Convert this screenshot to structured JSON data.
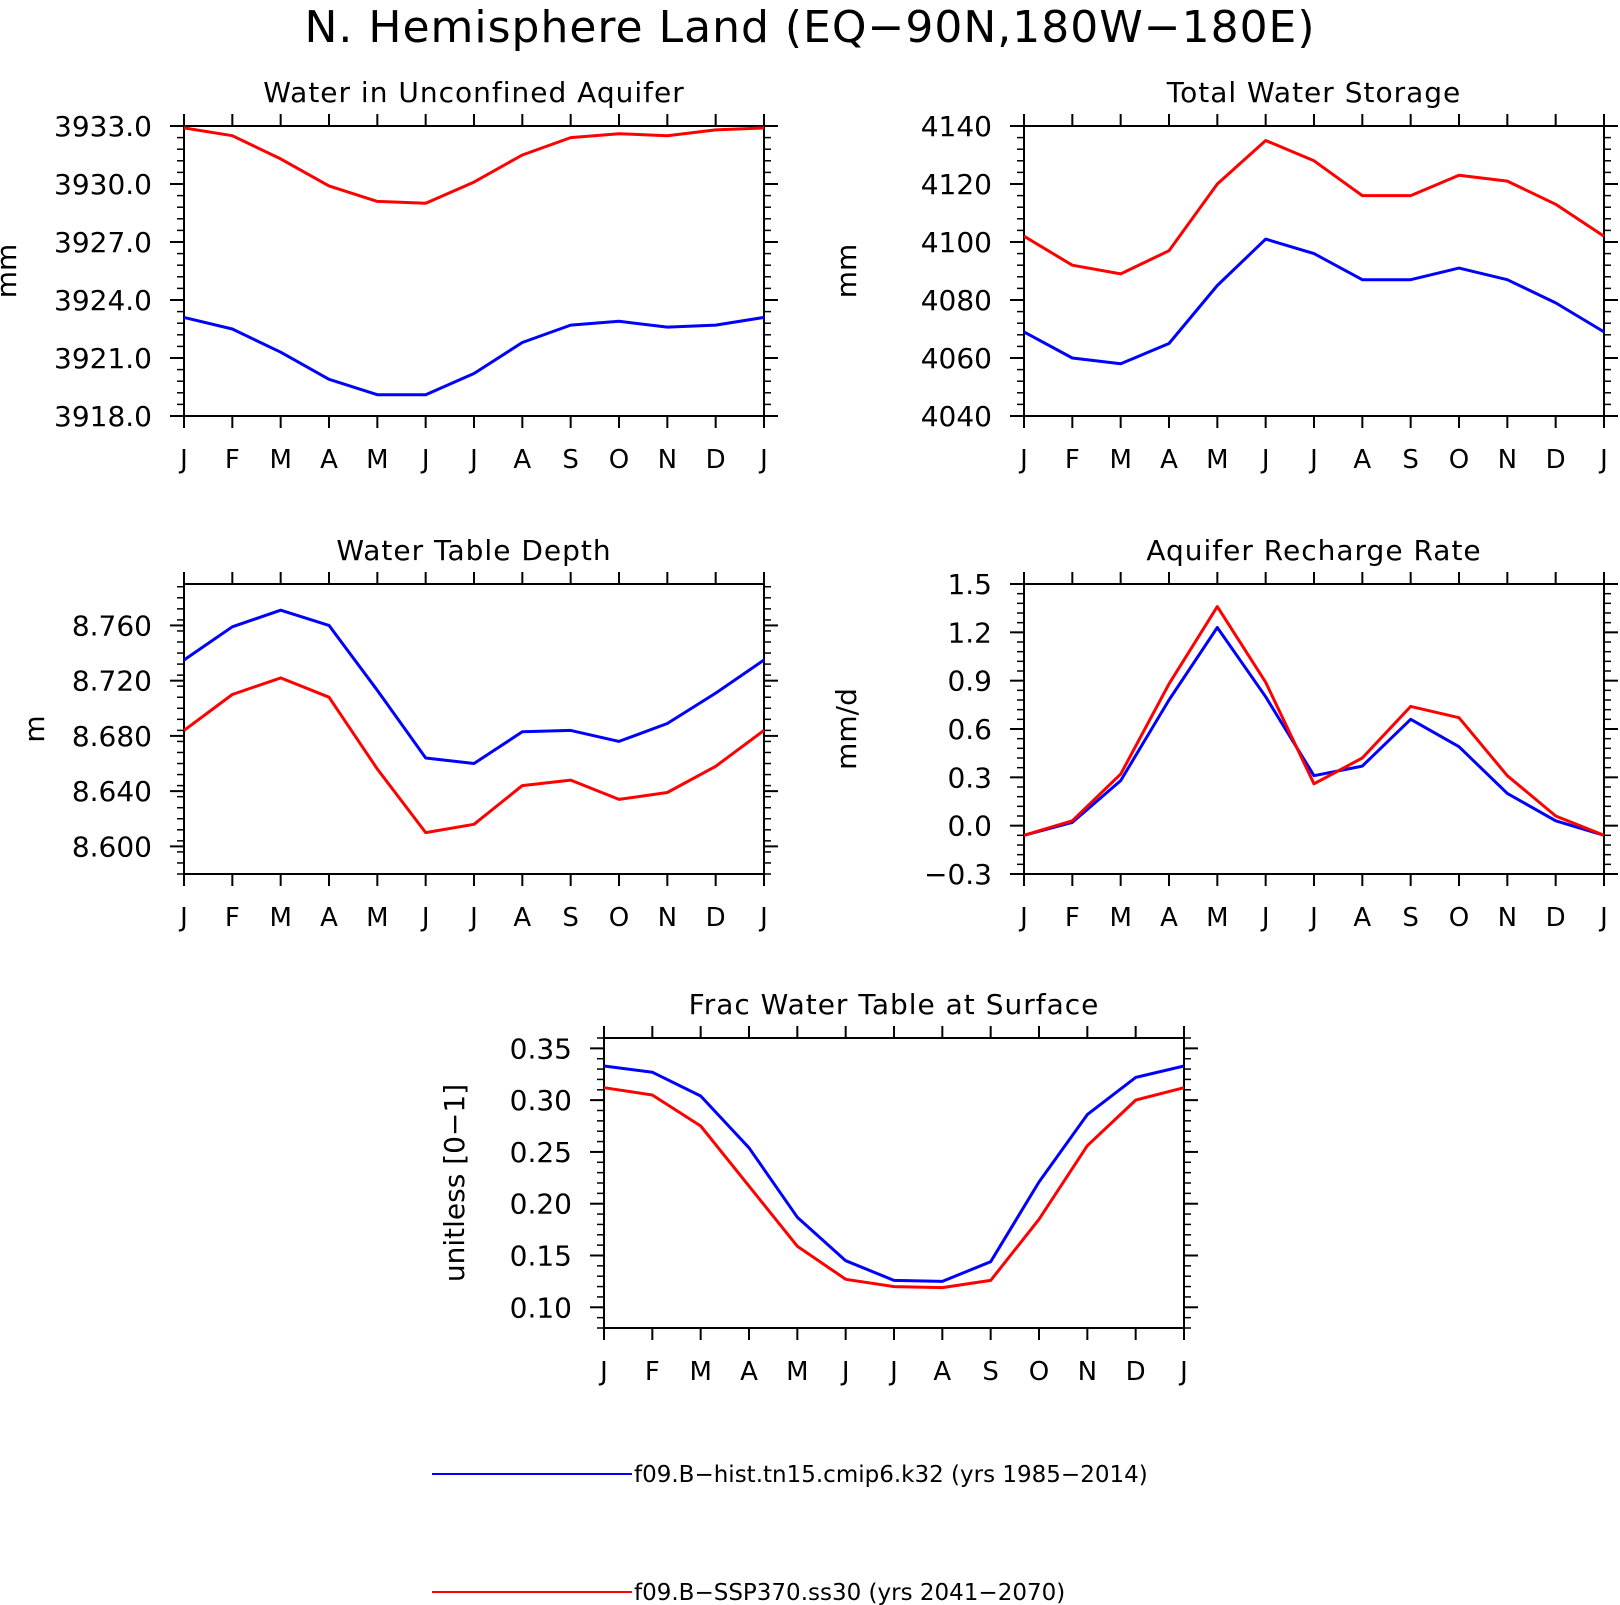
{
  "title": "N. Hemisphere Land (EQ−90N,180W−180E)",
  "months": [
    "J",
    "F",
    "M",
    "A",
    "M",
    "J",
    "J",
    "A",
    "S",
    "O",
    "N",
    "D",
    "J"
  ],
  "legend": [
    {
      "label": "f09.B−hist.tn15.cmip6.k32 (yrs 1985−2014)",
      "color": "#0000ff"
    },
    {
      "label": "f09.B−SSP370.ss30 (yrs 2041−2070)",
      "color": "#ff0000"
    }
  ],
  "chart_data": [
    {
      "type": "line",
      "title": "Water in Unconfined Aquifer",
      "ylabel": "mm",
      "ylim": [
        3918.0,
        3933.0
      ],
      "yticks": [
        3918.0,
        3921.0,
        3924.0,
        3927.0,
        3930.0,
        3933.0
      ],
      "yticklabels": [
        "3918.0",
        "3921.0",
        "3924.0",
        "3927.0",
        "3930.0",
        "3933.0"
      ],
      "series": [
        {
          "name": "f09.B−hist.tn15.cmip6.k32 (yrs 1985−2014)",
          "color": "#0000ff",
          "values": [
            3923.1,
            3922.5,
            3921.3,
            3919.9,
            3919.1,
            3919.1,
            3920.2,
            3921.8,
            3922.7,
            3922.9,
            3922.6,
            3922.7,
            3923.1
          ]
        },
        {
          "name": "f09.B−SSP370.ss30 (yrs 2041−2070)",
          "color": "#ff0000",
          "values": [
            3932.9,
            3932.5,
            3931.3,
            3929.9,
            3929.1,
            3929.0,
            3930.1,
            3931.5,
            3932.4,
            3932.6,
            3932.5,
            3932.8,
            3932.9
          ]
        }
      ]
    },
    {
      "type": "line",
      "title": "Total Water Storage",
      "ylabel": "mm",
      "ylim": [
        4040,
        4140
      ],
      "yticks": [
        4040,
        4060,
        4080,
        4100,
        4120,
        4140
      ],
      "yticklabels": [
        "4040",
        "4060",
        "4080",
        "4100",
        "4120",
        "4140"
      ],
      "series": [
        {
          "name": "f09.B−hist.tn15.cmip6.k32 (yrs 1985−2014)",
          "color": "#0000ff",
          "values": [
            4069,
            4060,
            4058,
            4065,
            4085,
            4101,
            4096,
            4087,
            4087,
            4091,
            4087,
            4079,
            4069
          ]
        },
        {
          "name": "f09.B−SSP370.ss30 (yrs 2041−2070)",
          "color": "#ff0000",
          "values": [
            4102,
            4092,
            4089,
            4097,
            4120,
            4135,
            4128,
            4116,
            4116,
            4123,
            4121,
            4113,
            4102
          ]
        }
      ]
    },
    {
      "type": "line",
      "title": "Water Table Depth",
      "ylabel": "m",
      "ylim": [
        8.58,
        8.79
      ],
      "yticks": [
        8.6,
        8.64,
        8.68,
        8.72,
        8.76
      ],
      "yticklabels": [
        "8.600",
        "8.640",
        "8.680",
        "8.720",
        "8.760"
      ],
      "series": [
        {
          "name": "f09.B−hist.tn15.cmip6.k32 (yrs 1985−2014)",
          "color": "#0000ff",
          "values": [
            8.735,
            8.759,
            8.771,
            8.76,
            8.713,
            8.664,
            8.66,
            8.683,
            8.684,
            8.676,
            8.689,
            8.711,
            8.735
          ]
        },
        {
          "name": "f09.B−SSP370.ss30 (yrs 2041−2070)",
          "color": "#ff0000",
          "values": [
            8.684,
            8.71,
            8.722,
            8.708,
            8.656,
            8.61,
            8.616,
            8.644,
            8.648,
            8.634,
            8.639,
            8.658,
            8.684
          ]
        }
      ]
    },
    {
      "type": "line",
      "title": "Aquifer Recharge Rate",
      "ylabel": "mm/d",
      "ylim": [
        -0.3,
        1.5
      ],
      "yticks": [
        -0.3,
        0.0,
        0.3,
        0.6,
        0.9,
        1.2,
        1.5
      ],
      "yticklabels": [
        "−0.3",
        "0.0",
        "0.3",
        "0.6",
        "0.9",
        "1.2",
        "1.5"
      ],
      "series": [
        {
          "name": "f09.B−hist.tn15.cmip6.k32 (yrs 1985−2014)",
          "color": "#0000ff",
          "values": [
            -0.06,
            0.02,
            0.28,
            0.78,
            1.23,
            0.8,
            0.31,
            0.37,
            0.66,
            0.49,
            0.2,
            0.03,
            -0.06
          ]
        },
        {
          "name": "f09.B−SSP370.ss30 (yrs 2041−2070)",
          "color": "#ff0000",
          "values": [
            -0.06,
            0.03,
            0.32,
            0.88,
            1.36,
            0.89,
            0.26,
            0.42,
            0.74,
            0.67,
            0.31,
            0.06,
            -0.06
          ]
        }
      ]
    },
    {
      "type": "line",
      "title": "Frac Water Table at Surface",
      "ylabel": "unitless [0−1]",
      "ylim": [
        0.08,
        0.36
      ],
      "yticks": [
        0.1,
        0.15,
        0.2,
        0.25,
        0.3,
        0.35
      ],
      "yticklabels": [
        "0.10",
        "0.15",
        "0.20",
        "0.25",
        "0.30",
        "0.35"
      ],
      "series": [
        {
          "name": "f09.B−hist.tn15.cmip6.k32 (yrs 1985−2014)",
          "color": "#0000ff",
          "values": [
            0.333,
            0.327,
            0.304,
            0.254,
            0.187,
            0.145,
            0.126,
            0.125,
            0.144,
            0.221,
            0.286,
            0.322,
            0.333
          ]
        },
        {
          "name": "f09.B−SSP370.ss30 (yrs 2041−2070)",
          "color": "#ff0000",
          "values": [
            0.312,
            0.305,
            0.275,
            0.217,
            0.159,
            0.127,
            0.12,
            0.119,
            0.126,
            0.185,
            0.256,
            0.3,
            0.312
          ]
        }
      ]
    }
  ]
}
